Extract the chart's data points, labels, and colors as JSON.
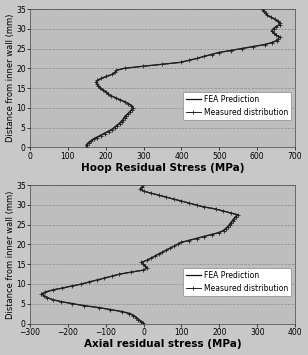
{
  "fig_bg": "#c8c8c8",
  "plot_bg": "#bebebe",
  "top_plot": {
    "xlabel": "Hoop Residual Stress (MPa)",
    "ylabel": "Distance from inner wall (mm)",
    "xlim": [
      0,
      700
    ],
    "ylim": [
      0,
      35
    ],
    "xticks": [
      0,
      100,
      200,
      300,
      400,
      500,
      600,
      700
    ],
    "yticks": [
      0,
      5,
      10,
      15,
      20,
      25,
      30,
      35
    ],
    "fea_x": [
      150,
      148,
      152,
      158,
      165,
      175,
      185,
      195,
      205,
      215,
      222,
      228,
      235,
      240,
      245,
      248,
      252,
      258,
      263,
      268,
      272,
      270,
      262,
      252,
      240,
      228,
      216,
      208,
      202,
      194,
      188,
      182,
      178,
      176,
      180,
      190,
      205,
      218,
      226,
      230,
      248,
      295,
      345,
      395,
      418,
      440,
      458,
      478,
      498,
      528,
      558,
      588,
      618,
      638,
      650,
      655,
      658,
      648,
      642,
      638,
      642,
      648,
      658,
      658,
      652,
      645,
      635,
      625,
      620,
      615,
      612
    ],
    "fea_y": [
      0.2,
      0.5,
      1.0,
      1.5,
      2.0,
      2.5,
      3.0,
      3.5,
      4.0,
      4.5,
      5.0,
      5.5,
      6.0,
      6.5,
      7.0,
      7.5,
      8.0,
      8.5,
      9.0,
      9.5,
      10.0,
      10.5,
      11.0,
      11.5,
      12.0,
      12.5,
      13.0,
      13.5,
      14.0,
      14.5,
      15.0,
      15.5,
      16.0,
      16.5,
      17.0,
      17.5,
      18.0,
      18.5,
      19.0,
      19.5,
      20.0,
      20.5,
      21.0,
      21.5,
      22.0,
      22.5,
      23.0,
      23.5,
      24.0,
      24.5,
      25.0,
      25.5,
      26.0,
      26.5,
      27.0,
      27.5,
      28.0,
      28.5,
      29.0,
      29.5,
      30.0,
      30.5,
      31.0,
      31.5,
      32.0,
      32.5,
      33.0,
      33.5,
      34.0,
      34.5,
      35.0
    ],
    "meas_x": [
      152,
      150,
      155,
      162,
      168,
      178,
      188,
      198,
      208,
      218,
      225,
      230,
      237,
      242,
      247,
      250,
      254,
      260,
      264,
      269,
      272,
      268,
      260,
      250,
      238,
      226,
      214,
      206,
      200,
      192,
      186,
      180,
      176,
      174,
      178,
      188,
      202,
      216,
      224,
      228,
      250,
      298,
      348,
      398,
      420,
      442,
      460,
      480,
      500,
      530,
      560,
      590,
      620,
      640,
      652,
      656,
      660,
      650,
      644,
      640,
      644,
      650,
      660,
      660,
      654,
      646,
      636,
      626,
      622,
      617,
      614
    ],
    "meas_y": [
      0.2,
      0.5,
      1.0,
      1.5,
      2.0,
      2.5,
      3.0,
      3.5,
      4.0,
      4.5,
      5.0,
      5.5,
      6.0,
      6.5,
      7.0,
      7.5,
      8.0,
      8.5,
      9.0,
      9.5,
      10.0,
      10.5,
      11.0,
      11.5,
      12.0,
      12.5,
      13.0,
      13.5,
      14.0,
      14.5,
      15.0,
      15.5,
      16.0,
      16.5,
      17.0,
      17.5,
      18.0,
      18.5,
      19.0,
      19.5,
      20.0,
      20.5,
      21.0,
      21.5,
      22.0,
      22.5,
      23.0,
      23.5,
      24.0,
      24.5,
      25.0,
      25.5,
      26.0,
      26.5,
      27.0,
      27.5,
      28.0,
      28.5,
      29.0,
      29.5,
      30.0,
      30.5,
      31.0,
      31.5,
      32.0,
      32.5,
      33.0,
      33.5,
      34.0,
      34.5,
      35.0
    ]
  },
  "bottom_plot": {
    "xlabel": "Axial residual stress (MPa)",
    "ylabel": "Distance from inner wall (mm)",
    "xlim": [
      -300,
      400
    ],
    "ylim": [
      0,
      35
    ],
    "xticks": [
      -300,
      -200,
      -100,
      0,
      100,
      200,
      300,
      400
    ],
    "yticks": [
      0,
      5,
      10,
      15,
      20,
      25,
      30,
      35
    ],
    "fea_x": [
      0,
      -5,
      -12,
      -18,
      -25,
      -35,
      -55,
      -85,
      -115,
      -155,
      -185,
      -215,
      -238,
      -252,
      -262,
      -267,
      -257,
      -238,
      -212,
      -188,
      -162,
      -143,
      -122,
      -102,
      -82,
      -62,
      -32,
      0,
      8,
      4,
      0,
      -4,
      8,
      18,
      28,
      38,
      48,
      58,
      68,
      78,
      88,
      98,
      118,
      138,
      158,
      178,
      198,
      210,
      216,
      222,
      226,
      230,
      234,
      238,
      242,
      248,
      228,
      208,
      188,
      158,
      138,
      118,
      98,
      78,
      58,
      38,
      18,
      0,
      -8,
      -4,
      0
    ],
    "fea_y": [
      0.2,
      0.5,
      1.0,
      1.5,
      2.0,
      2.5,
      3.0,
      3.5,
      4.0,
      4.5,
      5.0,
      5.5,
      6.0,
      6.5,
      7.0,
      7.5,
      8.0,
      8.5,
      9.0,
      9.5,
      10.0,
      10.5,
      11.0,
      11.5,
      12.0,
      12.5,
      13.0,
      13.5,
      14.0,
      14.5,
      15.0,
      15.5,
      16.0,
      16.5,
      17.0,
      17.5,
      18.0,
      18.5,
      19.0,
      19.5,
      20.0,
      20.5,
      21.0,
      21.5,
      22.0,
      22.5,
      23.0,
      23.5,
      24.0,
      24.5,
      25.0,
      25.5,
      26.0,
      26.5,
      27.0,
      27.5,
      28.0,
      28.5,
      29.0,
      29.5,
      30.0,
      30.5,
      31.0,
      31.5,
      32.0,
      32.5,
      33.0,
      33.5,
      34.0,
      34.5,
      35.0
    ],
    "meas_x": [
      -2,
      -8,
      -14,
      -20,
      -28,
      -38,
      -58,
      -88,
      -118,
      -158,
      -188,
      -218,
      -240,
      -254,
      -264,
      -270,
      -260,
      -240,
      -214,
      -190,
      -164,
      -145,
      -124,
      -104,
      -84,
      -64,
      -34,
      -2,
      10,
      5,
      -2,
      -6,
      10,
      20,
      30,
      40,
      50,
      60,
      70,
      80,
      90,
      100,
      120,
      140,
      160,
      180,
      200,
      212,
      218,
      224,
      228,
      232,
      236,
      240,
      244,
      250,
      230,
      210,
      190,
      160,
      140,
      120,
      100,
      80,
      60,
      40,
      20,
      0,
      -10,
      -5,
      -2
    ],
    "meas_y": [
      0.2,
      0.5,
      1.0,
      1.5,
      2.0,
      2.5,
      3.0,
      3.5,
      4.0,
      4.5,
      5.0,
      5.5,
      6.0,
      6.5,
      7.0,
      7.5,
      8.0,
      8.5,
      9.0,
      9.5,
      10.0,
      10.5,
      11.0,
      11.5,
      12.0,
      12.5,
      13.0,
      13.5,
      14.0,
      14.5,
      15.0,
      15.5,
      16.0,
      16.5,
      17.0,
      17.5,
      18.0,
      18.5,
      19.0,
      19.5,
      20.0,
      20.5,
      21.0,
      21.5,
      22.0,
      22.5,
      23.0,
      23.5,
      24.0,
      24.5,
      25.0,
      25.5,
      26.0,
      26.5,
      27.0,
      27.5,
      28.0,
      28.5,
      29.0,
      29.5,
      30.0,
      30.5,
      31.0,
      31.5,
      32.0,
      32.5,
      33.0,
      33.5,
      34.0,
      34.5,
      35.0
    ]
  },
  "line_color_fea": "#111111",
  "line_color_meas": "#222222",
  "legend_fea": "FEA Prediction",
  "legend_meas": "Measured distribution",
  "font_size_axis_label": 6,
  "font_size_tick": 5.5,
  "font_size_legend": 5.5,
  "font_size_xlabel": 7.5
}
